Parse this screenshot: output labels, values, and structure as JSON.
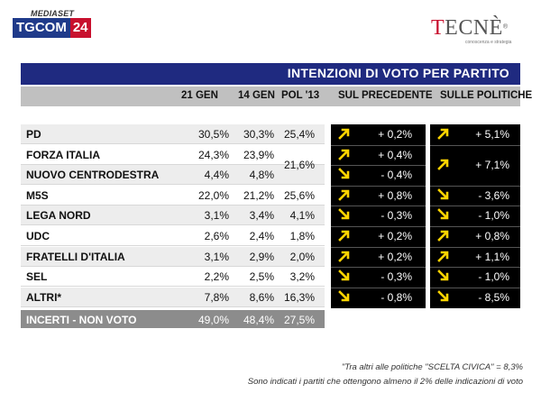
{
  "header": {
    "mediaset": "MEDIASET",
    "tgcom_text": "TGCOM",
    "tgcom_num": "24",
    "tecne_first": "T",
    "tecne_rest": "ECNÈ",
    "tecne_reg": "®",
    "tecne_sub": "conoscenza e strategia"
  },
  "chart_data": {
    "type": "table",
    "title": "INTENZIONI DI VOTO PER PARTITO",
    "columns": [
      "",
      "21 GEN",
      "14 GEN",
      "POL '13",
      "SUL PRECEDENTE",
      "SULLE POLITICHE"
    ],
    "rows": [
      {
        "party": "PD",
        "gen21": "30,5%",
        "gen14": "30,3%",
        "pol13": "25,4%",
        "prec_dir": "up",
        "prec": "+ 0,2%",
        "pol_dir": "up",
        "pol": "+ 5,1%"
      },
      {
        "party": "FORZA ITALIA",
        "gen21": "24,3%",
        "gen14": "23,9%",
        "pol13": "",
        "prec_dir": "up",
        "prec": "+ 0,4%",
        "pol_dir": "up",
        "pol": ""
      },
      {
        "party": "NUOVO CENTRODESTRA",
        "gen21": "4,4%",
        "gen14": "4,8%",
        "pol13": "",
        "prec_dir": "down",
        "prec": "- 0,4%",
        "pol_dir": "",
        "pol": ""
      },
      {
        "party": "M5S",
        "gen21": "22,0%",
        "gen14": "21,2%",
        "pol13": "25,6%",
        "prec_dir": "up",
        "prec": "+ 0,8%",
        "pol_dir": "down",
        "pol": "- 3,6%"
      },
      {
        "party": "LEGA NORD",
        "gen21": "3,1%",
        "gen14": "3,4%",
        "pol13": "4,1%",
        "prec_dir": "down",
        "prec": "- 0,3%",
        "pol_dir": "down",
        "pol": "- 1,0%"
      },
      {
        "party": "UDC",
        "gen21": "2,6%",
        "gen14": "2,4%",
        "pol13": "1,8%",
        "prec_dir": "up",
        "prec": "+ 0,2%",
        "pol_dir": "up",
        "pol": "+ 0,8%"
      },
      {
        "party": "FRATELLI D'ITALIA",
        "gen21": "3,1%",
        "gen14": "2,9%",
        "pol13": "2,0%",
        "prec_dir": "up",
        "prec": "+ 0,2%",
        "pol_dir": "up",
        "pol": "+ 1,1%"
      },
      {
        "party": "SEL",
        "gen21": "2,2%",
        "gen14": "2,5%",
        "pol13": "3,2%",
        "prec_dir": "down",
        "prec": "- 0,3%",
        "pol_dir": "down",
        "pol": "- 1,0%"
      },
      {
        "party": "ALTRI*",
        "gen21": "7,8%",
        "gen14": "8,6%",
        "pol13": "16,3%",
        "prec_dir": "down",
        "prec": "- 0,8%",
        "pol_dir": "down",
        "pol": "- 8,5%"
      }
    ],
    "merged": {
      "pol13_fi_ncd": "21,6%",
      "pol_fi_ncd_dir": "up",
      "pol_fi_ncd": "+ 7,1%"
    },
    "incerti": {
      "label": "INCERTI - NON VOTO",
      "gen21": "49,0%",
      "gen14": "48,4%",
      "pol13": "27,5%"
    }
  },
  "colors": {
    "banner": "#1f2a80",
    "arrow_up": "#ffd400",
    "arrow_down": "#ffd400",
    "cells": "#000000"
  },
  "notes": [
    "\"Tra altri alle politiche \"SCELTA CIVICA\" = 8,3%",
    "Sono indicati i partiti che ottengono almeno il 2% delle indicazioni di voto"
  ]
}
